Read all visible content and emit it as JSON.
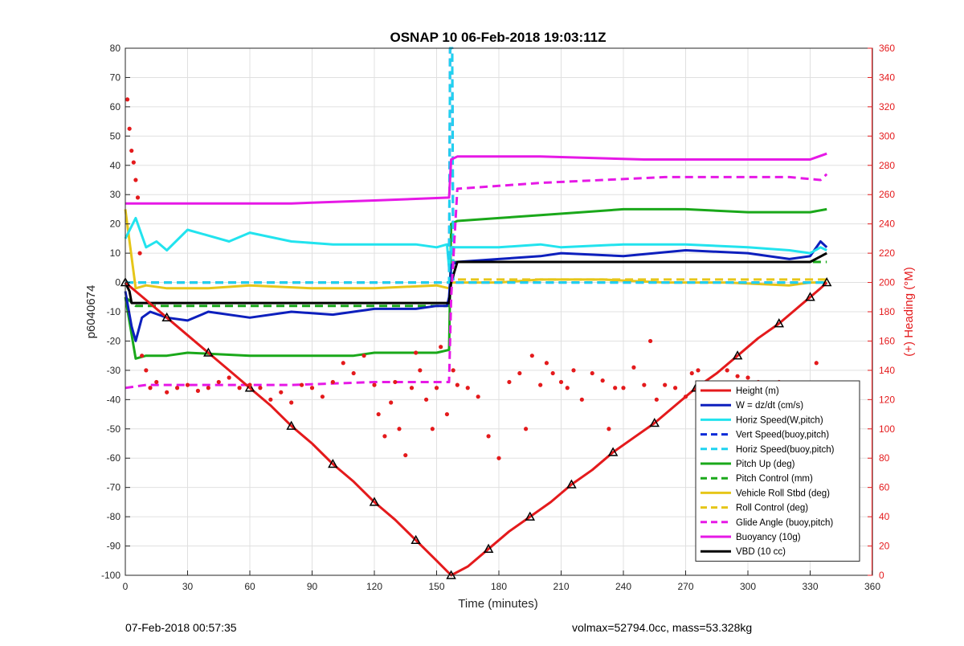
{
  "chart_data": {
    "type": "line",
    "title": "OSNAP 10 06-Feb-2018 19:03:11Z",
    "xlabel": "Time (minutes)",
    "ylabel": "p6040674",
    "y2label": "(+) Heading (°M)",
    "xlim": [
      0,
      360
    ],
    "ylim": [
      -100,
      80
    ],
    "y2lim": [
      0,
      360
    ],
    "xticks": [
      "0",
      "30",
      "60",
      "90",
      "120",
      "150",
      "180",
      "210",
      "240",
      "270",
      "300",
      "330",
      "360"
    ],
    "yticks": [
      "-100",
      "-90",
      "-80",
      "-70",
      "-60",
      "-50",
      "-40",
      "-30",
      "-20",
      "-10",
      "0",
      "10",
      "20",
      "30",
      "40",
      "50",
      "60",
      "70",
      "80"
    ],
    "y2ticks": [
      "0",
      "20",
      "40",
      "60",
      "80",
      "100",
      "120",
      "140",
      "160",
      "180",
      "200",
      "220",
      "240",
      "260",
      "280",
      "300",
      "320",
      "340",
      "360"
    ],
    "legend_position": "bottom-right",
    "series": [
      {
        "name": "Height (m)",
        "color": "#e41a1c",
        "style": "solid",
        "x": [
          0,
          10,
          20,
          30,
          40,
          50,
          60,
          70,
          80,
          90,
          100,
          110,
          120,
          130,
          140,
          150,
          157,
          165,
          175,
          185,
          195,
          205,
          215,
          225,
          235,
          245,
          255,
          265,
          275,
          285,
          295,
          305,
          315,
          325,
          330,
          335,
          338
        ],
        "values": [
          0,
          -6,
          -12,
          -18,
          -24,
          -30,
          -36,
          -42,
          -49,
          -55,
          -62,
          -68,
          -75,
          -81,
          -88,
          -95,
          -100,
          -97,
          -91,
          -85,
          -80,
          -75,
          -69,
          -64,
          -58,
          -53,
          -48,
          -42,
          -36,
          -31,
          -25,
          -19,
          -14,
          -8,
          -5,
          -2,
          0
        ]
      },
      {
        "name": "W = dz/dt (cm/s)",
        "color": "#0d1fbd",
        "style": "solid",
        "x": [
          0,
          3,
          5,
          8,
          12,
          20,
          30,
          40,
          60,
          80,
          100,
          120,
          140,
          150,
          155,
          156,
          157,
          160,
          180,
          200,
          210,
          240,
          270,
          300,
          320,
          330,
          335,
          338
        ],
        "values": [
          -3,
          -15,
          -20,
          -12,
          -10,
          -12,
          -13,
          -10,
          -12,
          -10,
          -11,
          -9,
          -9,
          -8,
          -8,
          -5,
          6,
          7,
          8,
          9,
          10,
          9,
          11,
          10,
          8,
          9,
          14,
          12
        ]
      },
      {
        "name": "Horiz Speed(W,pitch)",
        "color": "#22e3ee",
        "style": "solid",
        "x": [
          0,
          5,
          10,
          15,
          20,
          30,
          40,
          50,
          60,
          80,
          100,
          120,
          140,
          150,
          155,
          156,
          157,
          160,
          180,
          200,
          210,
          240,
          270,
          300,
          320,
          330,
          335,
          338
        ],
        "values": [
          15,
          22,
          12,
          14,
          11,
          18,
          16,
          14,
          17,
          14,
          13,
          13,
          13,
          12,
          13,
          5,
          12,
          12,
          12,
          13,
          12,
          13,
          13,
          12,
          11,
          10,
          12,
          11
        ]
      },
      {
        "name": "Vert Speed(buoy,pitch)",
        "color": "#0a2bd8",
        "style": "dashed",
        "x": [
          0,
          156,
          156.5,
          157.5,
          158,
          338
        ],
        "values": [
          0,
          0,
          80,
          80,
          0,
          0
        ]
      },
      {
        "name": "Horiz Speed(buoy,pitch)",
        "color": "#1fd3f0",
        "style": "dashed",
        "x": [
          0,
          156,
          156.5,
          157.5,
          158,
          338
        ],
        "values": [
          0,
          0,
          80,
          80,
          0,
          0
        ]
      },
      {
        "name": "Pitch Up (deg)",
        "color": "#1aa81a",
        "style": "solid",
        "x": [
          0,
          5,
          10,
          20,
          30,
          60,
          90,
          110,
          120,
          150,
          156,
          157,
          160,
          180,
          200,
          220,
          240,
          270,
          300,
          320,
          330,
          338
        ],
        "values": [
          -5,
          -26,
          -25,
          -25,
          -24,
          -25,
          -25,
          -25,
          -24,
          -24,
          -23,
          20,
          21,
          22,
          23,
          24,
          25,
          25,
          24,
          24,
          24,
          25
        ]
      },
      {
        "name": "Pitch Control (mm)",
        "color": "#1aa81a",
        "style": "dashed",
        "x": [
          0,
          5,
          30,
          60,
          90,
          120,
          150,
          156,
          157,
          200,
          250,
          300,
          338
        ],
        "values": [
          -5,
          -8,
          -8,
          -8,
          -8,
          -8,
          -8,
          -8,
          7,
          7,
          7,
          7,
          7
        ]
      },
      {
        "name": "Vehicle Roll Stbd (deg)",
        "color": "#e6c619",
        "style": "solid",
        "x": [
          0,
          5,
          10,
          20,
          40,
          60,
          90,
          120,
          150,
          156,
          157,
          160,
          180,
          200,
          230,
          260,
          290,
          320,
          330,
          338
        ],
        "values": [
          25,
          -2,
          -1,
          -2,
          -2,
          -1,
          -2,
          -2,
          -1,
          -2,
          0,
          0,
          0,
          1,
          1,
          0,
          0,
          -1,
          0,
          0
        ]
      },
      {
        "name": "Roll Control (deg)",
        "color": "#e6c619",
        "style": "dashed",
        "x": [
          0,
          156,
          157,
          338
        ],
        "values": [
          0,
          0,
          1,
          1
        ]
      },
      {
        "name": "Glide Angle (buoy,pitch)",
        "color": "#e619e6",
        "style": "dashed",
        "x": [
          0,
          10,
          40,
          80,
          120,
          150,
          156,
          157,
          160,
          180,
          200,
          230,
          260,
          290,
          320,
          335,
          338
        ],
        "values": [
          -36,
          -35,
          -35,
          -35,
          -34,
          -34,
          -34,
          -5,
          32,
          33,
          34,
          35,
          36,
          36,
          36,
          35,
          37
        ]
      },
      {
        "name": "Buoyancy (10g)",
        "color": "#e619e6",
        "style": "solid",
        "x": [
          0,
          40,
          80,
          120,
          156,
          157,
          160,
          200,
          250,
          300,
          330,
          338
        ],
        "values": [
          27,
          27,
          27,
          28,
          29,
          42,
          43,
          43,
          42,
          42,
          42,
          44
        ]
      },
      {
        "name": "VBD (10 cc)",
        "color": "#000000",
        "style": "solid",
        "x": [
          0,
          2,
          3,
          40,
          80,
          120,
          156,
          157,
          160,
          200,
          250,
          300,
          330,
          338
        ],
        "values": [
          0,
          -3,
          -7,
          -7,
          -7,
          -7,
          -7,
          0,
          7,
          7,
          7,
          7,
          7,
          10
        ]
      }
    ],
    "heading_points": {
      "name": "Heading",
      "color": "#e41a1c",
      "x": [
        1,
        2,
        3,
        4,
        5,
        6,
        7,
        8,
        10,
        12,
        15,
        20,
        25,
        30,
        35,
        40,
        45,
        50,
        55,
        60,
        65,
        70,
        75,
        80,
        85,
        90,
        95,
        100,
        105,
        110,
        115,
        120,
        122,
        125,
        128,
        130,
        132,
        135,
        138,
        140,
        142,
        145,
        148,
        150,
        152,
        155,
        158,
        160,
        165,
        170,
        175,
        180,
        185,
        190,
        193,
        196,
        200,
        203,
        206,
        210,
        213,
        216,
        220,
        225,
        230,
        233,
        236,
        240,
        245,
        250,
        253,
        256,
        260,
        265,
        270,
        273,
        276,
        280,
        285,
        290,
        295,
        300,
        305,
        310,
        315,
        320,
        325,
        330,
        333,
        336,
        338
      ],
      "values": [
        325,
        305,
        290,
        282,
        270,
        258,
        220,
        150,
        140,
        128,
        132,
        125,
        128,
        130,
        126,
        128,
        132,
        135,
        128,
        130,
        128,
        120,
        125,
        118,
        130,
        128,
        122,
        132,
        145,
        138,
        150,
        130,
        110,
        95,
        118,
        132,
        100,
        82,
        128,
        152,
        140,
        120,
        100,
        128,
        156,
        110,
        140,
        130,
        128,
        122,
        95,
        80,
        132,
        138,
        100,
        150,
        130,
        145,
        138,
        132,
        128,
        140,
        120,
        138,
        133,
        100,
        128,
        128,
        142,
        130,
        160,
        120,
        130,
        128,
        122,
        138,
        140,
        130,
        126,
        140,
        136,
        135,
        132,
        122,
        132,
        128,
        126,
        130,
        145,
        118,
        90
      ]
    },
    "annotations": {
      "bottom_left": "07-Feb-2018 00:57:35",
      "bottom_right": "volmax=52794.0cc, mass=53.328kg"
    }
  }
}
